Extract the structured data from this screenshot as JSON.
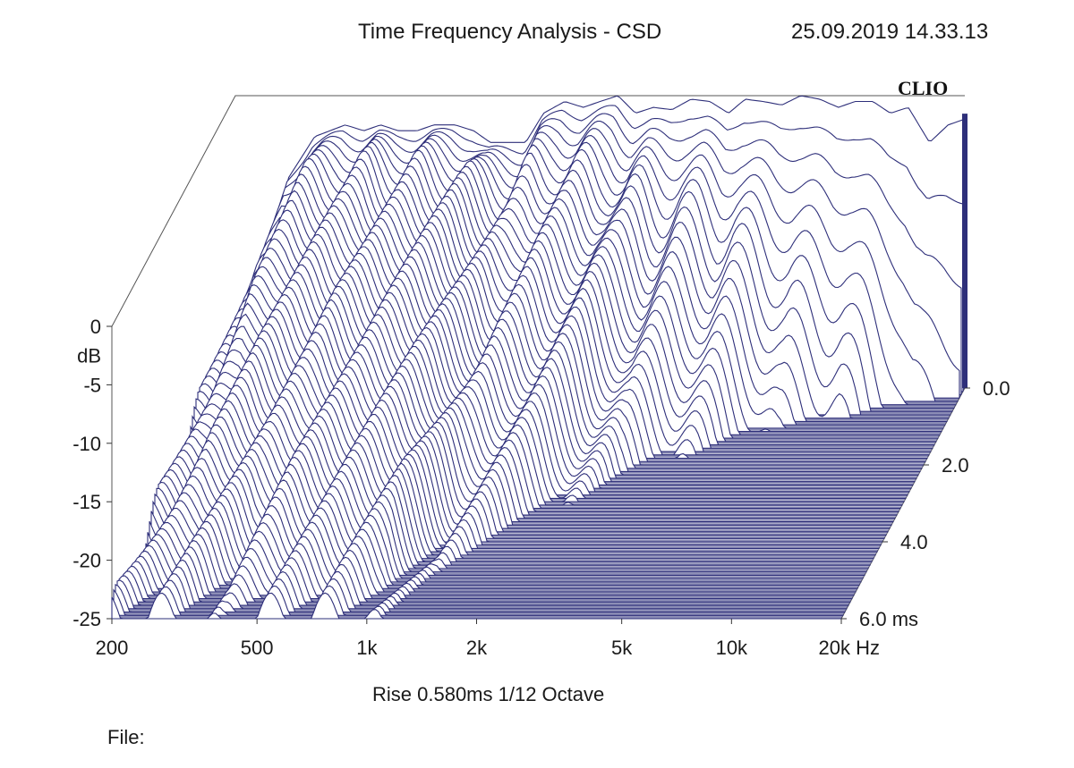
{
  "header": {
    "title": "Time Frequency Analysis - CSD",
    "timestamp": "25.09.2019 14.33.13"
  },
  "brand": "CLIO",
  "footer": {
    "caption": "Rise 0.580ms   1/12 Octave",
    "file_label": "File:"
  },
  "colors": {
    "trace": "#2e2f7a",
    "floor": "#2e2f7a",
    "axis": "#333333"
  },
  "chart_data": {
    "type": "waterfall",
    "title": "Time Frequency Analysis - CSD",
    "x_axis": {
      "scale": "log",
      "range": [
        200,
        20000
      ],
      "unit": "Hz",
      "ticks": [
        {
          "value": 200,
          "label": "200"
        },
        {
          "value": 500,
          "label": "500"
        },
        {
          "value": 1000,
          "label": "1k"
        },
        {
          "value": 2000,
          "label": "2k"
        },
        {
          "value": 5000,
          "label": "5k"
        },
        {
          "value": 10000,
          "label": "10k"
        },
        {
          "value": 20000,
          "label": "20k Hz"
        }
      ]
    },
    "y_axis": {
      "unit": "dB",
      "range": [
        -25,
        0
      ],
      "ticks": [
        {
          "value": 0,
          "label": "0"
        },
        {
          "value": -5,
          "label": "-5"
        },
        {
          "value": -10,
          "label": "-10"
        },
        {
          "value": -15,
          "label": "-15"
        },
        {
          "value": -20,
          "label": "-20"
        },
        {
          "value": -25,
          "label": "-25"
        }
      ]
    },
    "z_axis": {
      "unit": "ms",
      "range": [
        0,
        6
      ],
      "ticks": [
        {
          "value": 0,
          "label": "0.0"
        },
        {
          "value": 2,
          "label": "2.0"
        },
        {
          "value": 4,
          "label": "4.0"
        },
        {
          "value": 6,
          "label": "6.0  ms"
        }
      ]
    },
    "rise_ms": 0.58,
    "resolution": "1/12 Octave",
    "slice_count": 70,
    "initial_response": {
      "freq_hz": [
        200,
        240,
        280,
        330,
        400,
        450,
        500,
        560,
        630,
        700,
        800,
        900,
        1000,
        1120,
        1250,
        1400,
        1600,
        1800,
        2000,
        2240,
        2500,
        2800,
        3150,
        3550,
        4000,
        4500,
        5000,
        5600,
        6300,
        7100,
        8000,
        9000,
        10000,
        11200,
        12500,
        14000,
        16000,
        18000,
        20000
      ],
      "level_db": [
        -20,
        -15,
        -7,
        -3.5,
        -2.5,
        -3,
        -2.5,
        -3,
        -3,
        -2.5,
        -2.5,
        -3,
        -4,
        -4,
        -4,
        -1.5,
        -0.5,
        -1,
        -0.5,
        0,
        -1.5,
        -1,
        -1.2,
        -0.3,
        -0.5,
        -1.5,
        -0.3,
        -0.5,
        -0.8,
        0,
        -0.3,
        -1,
        -0.5,
        -0.5,
        -1.5,
        -1,
        -4,
        -2.5,
        -2
      ]
    },
    "decay_ms_to_floor": {
      "freq_hz": [
        200,
        300,
        400,
        500,
        700,
        1000,
        1300,
        2000,
        3000,
        5000,
        7000,
        10000,
        15000,
        20000
      ],
      "time_ms": [
        6.0,
        6.0,
        5.5,
        6.0,
        6.0,
        6.0,
        4.5,
        3.5,
        2.2,
        1.5,
        1.0,
        0.8,
        0.4,
        0.3
      ]
    },
    "noise_floor_db": -25
  }
}
